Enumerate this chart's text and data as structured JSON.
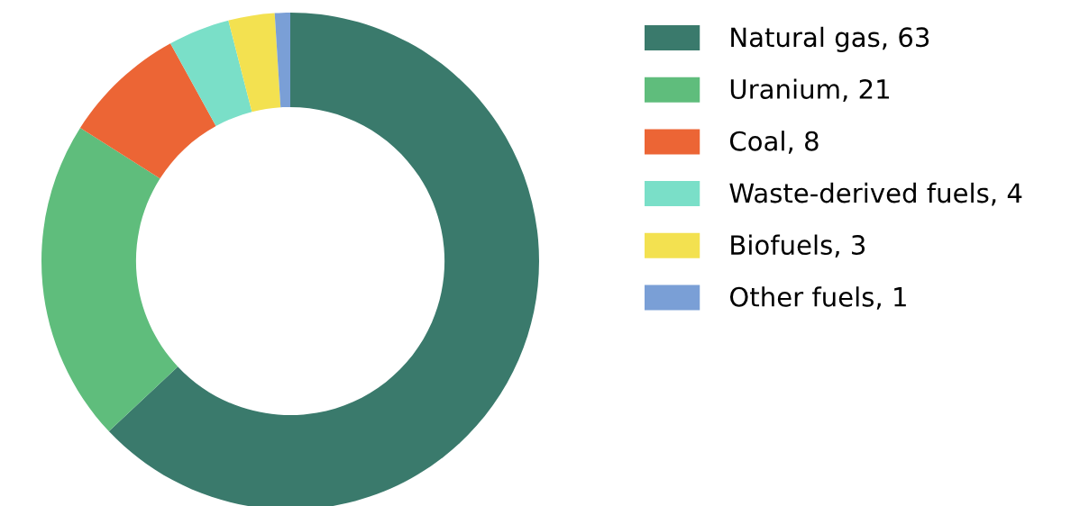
{
  "chart_data": {
    "type": "donut",
    "categories": [
      "Natural gas, 63",
      "Uranium, 21",
      "Coal, 8",
      "Waste-derived fuels, 4",
      "Biofuels, 3",
      "Other fuels, 1"
    ],
    "values": [
      63,
      21,
      8,
      4,
      3,
      1
    ],
    "colors": [
      "#3a7a6c",
      "#5fbd7c",
      "#ec6535",
      "#7adfc8",
      "#f3e150",
      "#7a9fd6"
    ],
    "legend": "right"
  }
}
